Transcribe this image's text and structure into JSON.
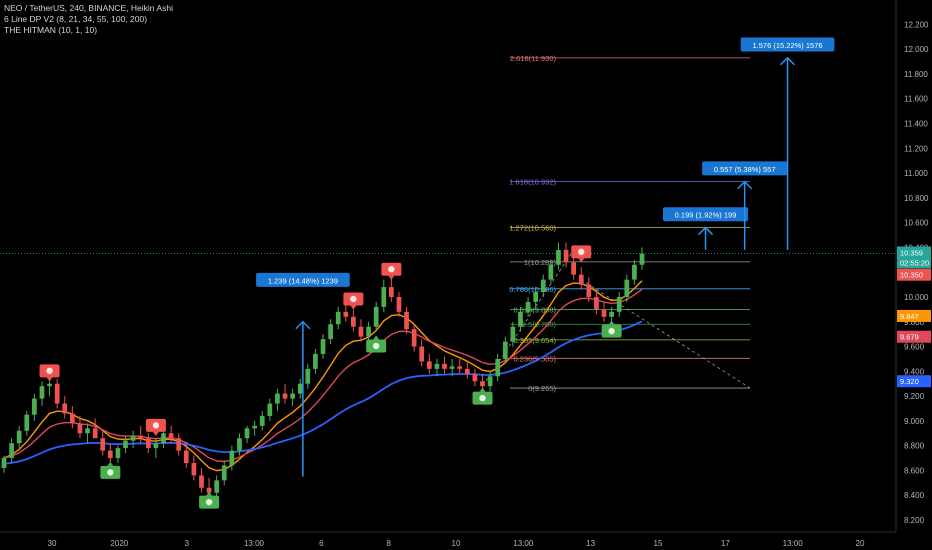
{
  "legend": {
    "symbol_line": "NEO / TetherUS, 240, BINANCE, Heikin Ashi",
    "indicator1": "6 Line DP V2 (8, 21, 34, 55, 100, 200)",
    "indicator2": "THE HITMAN (10, 1, 10)"
  },
  "colors": {
    "background": "#000000",
    "bull": "#4caf50",
    "bear": "#ef5350",
    "ema_orange": "#ff9800",
    "ema_red": "#e0475a",
    "ema_blue": "#2962ff",
    "measure_blue": "#2196f3"
  },
  "chart_data": {
    "type": "candlestick",
    "y_range": [
      8.2,
      12.3
    ],
    "y_ticks": [
      "8.200",
      "8.400",
      "8.600",
      "8.800",
      "9.000",
      "9.200",
      "9.400",
      "9.600",
      "9.800",
      "10.000",
      "10.200",
      "10.400",
      "10.600",
      "10.800",
      "11.000",
      "11.200",
      "11.400",
      "11.600",
      "11.800",
      "12.000",
      "12.200"
    ],
    "x_ticks": [
      "30",
      "2020",
      "3",
      "13:00",
      "6",
      "8",
      "10",
      "13:00",
      "13",
      "15",
      "17",
      "13:00",
      "20"
    ],
    "candles": [
      [
        8.62,
        8.72,
        8.58,
        8.7
      ],
      [
        8.7,
        8.86,
        8.66,
        8.82
      ],
      [
        8.82,
        8.96,
        8.78,
        8.92
      ],
      [
        8.92,
        9.08,
        8.88,
        9.05
      ],
      [
        9.05,
        9.22,
        9.0,
        9.18
      ],
      [
        9.18,
        9.32,
        9.12,
        9.28
      ],
      [
        9.28,
        9.36,
        9.2,
        9.3
      ],
      [
        9.3,
        9.34,
        9.1,
        9.14
      ],
      [
        9.14,
        9.2,
        9.02,
        9.06
      ],
      [
        9.06,
        9.12,
        8.94,
        8.98
      ],
      [
        8.98,
        9.04,
        8.86,
        8.9
      ],
      [
        8.9,
        8.98,
        8.82,
        8.94
      ],
      [
        8.94,
        9.02,
        8.88,
        8.86
      ],
      [
        8.86,
        8.92,
        8.72,
        8.76
      ],
      [
        8.76,
        8.82,
        8.64,
        8.7
      ],
      [
        8.7,
        8.8,
        8.66,
        8.78
      ],
      [
        8.78,
        8.88,
        8.74,
        8.84
      ],
      [
        8.84,
        8.92,
        8.78,
        8.88
      ],
      [
        8.88,
        8.96,
        8.82,
        8.86
      ],
      [
        8.86,
        8.9,
        8.74,
        8.78
      ],
      [
        8.78,
        8.86,
        8.7,
        8.82
      ],
      [
        8.82,
        8.92,
        8.78,
        8.9
      ],
      [
        8.9,
        8.96,
        8.82,
        8.86
      ],
      [
        8.86,
        8.9,
        8.72,
        8.76
      ],
      [
        8.76,
        8.82,
        8.62,
        8.66
      ],
      [
        8.66,
        8.72,
        8.52,
        8.56
      ],
      [
        8.56,
        8.62,
        8.42,
        8.46
      ],
      [
        8.46,
        8.54,
        8.36,
        8.42
      ],
      [
        8.42,
        8.56,
        8.38,
        8.52
      ],
      [
        8.52,
        8.68,
        8.48,
        8.64
      ],
      [
        8.64,
        8.8,
        8.6,
        8.76
      ],
      [
        8.76,
        8.9,
        8.72,
        8.86
      ],
      [
        8.86,
        8.96,
        8.82,
        8.94
      ],
      [
        8.94,
        9.0,
        8.88,
        8.96
      ],
      [
        8.96,
        9.08,
        8.92,
        9.04
      ],
      [
        9.04,
        9.18,
        9.0,
        9.14
      ],
      [
        9.14,
        9.26,
        9.08,
        9.22
      ],
      [
        9.22,
        9.3,
        9.14,
        9.18
      ],
      [
        9.18,
        9.26,
        9.12,
        9.22
      ],
      [
        9.22,
        9.34,
        9.18,
        9.3
      ],
      [
        9.3,
        9.46,
        9.26,
        9.42
      ],
      [
        9.42,
        9.58,
        9.38,
        9.54
      ],
      [
        9.54,
        9.7,
        9.5,
        9.66
      ],
      [
        9.66,
        9.82,
        9.62,
        9.78
      ],
      [
        9.78,
        9.92,
        9.74,
        9.88
      ],
      [
        9.88,
        9.96,
        9.8,
        9.84
      ],
      [
        9.84,
        9.9,
        9.72,
        9.76
      ],
      [
        9.76,
        9.82,
        9.64,
        9.68
      ],
      [
        9.68,
        9.8,
        9.64,
        9.76
      ],
      [
        9.76,
        9.96,
        9.72,
        9.92
      ],
      [
        9.92,
        10.14,
        9.88,
        10.08
      ],
      [
        10.08,
        10.16,
        9.96,
        10.0
      ],
      [
        10.0,
        10.04,
        9.84,
        9.88
      ],
      [
        9.88,
        9.92,
        9.7,
        9.74
      ],
      [
        9.74,
        9.78,
        9.56,
        9.6
      ],
      [
        9.6,
        9.66,
        9.44,
        9.48
      ],
      [
        9.48,
        9.54,
        9.38,
        9.42
      ],
      [
        9.42,
        9.5,
        9.36,
        9.46
      ],
      [
        9.46,
        9.52,
        9.38,
        9.42
      ],
      [
        9.42,
        9.5,
        9.36,
        9.44
      ],
      [
        9.44,
        9.5,
        9.38,
        9.42
      ],
      [
        9.42,
        9.48,
        9.34,
        9.38
      ],
      [
        9.38,
        9.42,
        9.28,
        9.32
      ],
      [
        9.32,
        9.38,
        9.24,
        9.28
      ],
      [
        9.28,
        9.4,
        9.24,
        9.36
      ],
      [
        9.36,
        9.54,
        9.32,
        9.5
      ],
      [
        9.5,
        9.68,
        9.46,
        9.64
      ],
      [
        9.64,
        9.8,
        9.6,
        9.76
      ],
      [
        9.76,
        9.92,
        9.72,
        9.88
      ],
      [
        9.88,
        10.0,
        9.84,
        9.96
      ],
      [
        9.96,
        10.08,
        9.9,
        10.04
      ],
      [
        10.04,
        10.18,
        10.0,
        10.14
      ],
      [
        10.14,
        10.3,
        10.1,
        10.26
      ],
      [
        10.26,
        10.44,
        10.22,
        10.38
      ],
      [
        10.38,
        10.44,
        10.24,
        10.28
      ],
      [
        10.28,
        10.34,
        10.14,
        10.18
      ],
      [
        10.18,
        10.24,
        10.06,
        10.1
      ],
      [
        10.1,
        10.16,
        9.96,
        10.0
      ],
      [
        10.0,
        10.06,
        9.86,
        9.9
      ],
      [
        9.9,
        9.96,
        9.8,
        9.84
      ],
      [
        9.84,
        9.92,
        9.78,
        9.88
      ],
      [
        9.88,
        10.04,
        9.84,
        10.0
      ],
      [
        10.0,
        10.18,
        9.96,
        10.14
      ],
      [
        10.14,
        10.3,
        10.1,
        10.26
      ],
      [
        10.26,
        10.4,
        10.22,
        10.35
      ]
    ],
    "emas": [
      {
        "name": "orange",
        "color": "#ff9800",
        "y_start": 8.66,
        "y_end": 9.88
      },
      {
        "name": "red",
        "color": "#e0475a",
        "y_start": 8.68,
        "y_end": 9.7
      },
      {
        "name": "blue",
        "color": "#2962ff",
        "y_start": 8.62,
        "y_end": 9.32
      }
    ],
    "fib_levels": [
      {
        "label": "2.618(11.930)",
        "value": 11.93,
        "color": "#e57373"
      },
      {
        "label": "1.618(10.932)",
        "value": 10.932,
        "color": "#7c6fdc"
      },
      {
        "label": "1.272(10.560)",
        "value": 10.56,
        "color": "#c6c14b"
      },
      {
        "label": "1(10.283)",
        "value": 10.283,
        "color": "#9e9e9e"
      },
      {
        "label": "0.786(10.066)",
        "value": 10.066,
        "color": "#42a5f5"
      },
      {
        "label": "0.618(9.898)",
        "value": 9.898,
        "color": "#66bb6a"
      },
      {
        "label": "0.5(9.780)",
        "value": 9.78,
        "color": "#43a047"
      },
      {
        "label": "0.382(9.654)",
        "value": 9.654,
        "color": "#8bc34a"
      },
      {
        "label": "0.236(9.505)",
        "value": 9.505,
        "color": "#e57373"
      },
      {
        "label": "0(9.265)",
        "value": 9.265,
        "color": "#9e9e9e"
      }
    ],
    "measurements": [
      {
        "label": "1.239 (14.48%) 1239",
        "x_frac": 0.325,
        "y_from": 8.55,
        "y_to": 9.8,
        "box_value": 10.13
      },
      {
        "label": "0.199 (1.92%) 199",
        "x_frac": 0.757,
        "y_from": 10.38,
        "y_to": 10.56,
        "box_value": 10.66
      },
      {
        "label": "0.557 (5.38%) 557",
        "x_frac": 0.799,
        "y_from": 10.38,
        "y_to": 10.93,
        "box_value": 11.03
      },
      {
        "label": "1.576 (15.22%) 1576",
        "x_frac": 0.845,
        "y_from": 10.38,
        "y_to": 11.93,
        "box_value": 12.03
      }
    ],
    "price_tags": [
      {
        "label": "10.359",
        "value": 10.359,
        "color": "#26a69a"
      },
      {
        "label": "02:55:20",
        "value": 10.28,
        "color": "#26a69a"
      },
      {
        "label": "10.350",
        "value": 10.18,
        "color": "#ef5350"
      },
      {
        "label": "9.847",
        "value": 9.847,
        "color": "#ff9800"
      },
      {
        "label": "9.679",
        "value": 9.679,
        "color": "#e0475a"
      },
      {
        "label": "9.320",
        "value": 9.32,
        "color": "#2962ff"
      }
    ],
    "signals": [
      {
        "kind": "bear",
        "candle": 6,
        "value": 9.4
      },
      {
        "kind": "bull",
        "candle": 14,
        "value": 8.58
      },
      {
        "kind": "bear",
        "candle": 20,
        "value": 8.96
      },
      {
        "kind": "bull",
        "candle": 27,
        "value": 8.34
      },
      {
        "kind": "bear",
        "candle": 46,
        "value": 9.98
      },
      {
        "kind": "bull",
        "candle": 49,
        "value": 9.6
      },
      {
        "kind": "bear",
        "candle": 51,
        "value": 10.22
      },
      {
        "kind": "bull",
        "candle": 63,
        "value": 9.18
      },
      {
        "kind": "bear",
        "candle": 76,
        "value": 10.36
      },
      {
        "kind": "bull",
        "candle": 80,
        "value": 9.72
      }
    ]
  }
}
